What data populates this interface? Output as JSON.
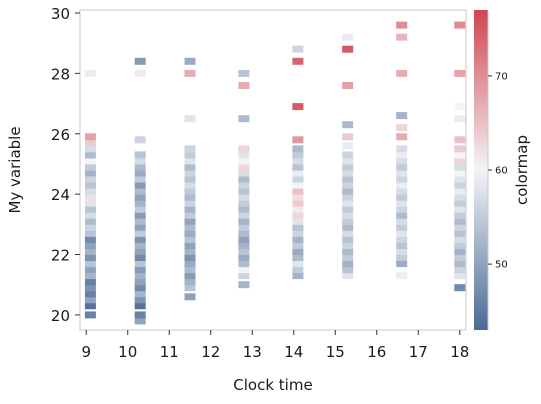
{
  "chart_data": {
    "type": "heatmap",
    "xlabel": "Clock time",
    "ylabel": "My variable",
    "colorbar_label": "colormap",
    "xlim": [
      8.85,
      18.15
    ],
    "ylim": [
      19.5,
      30.1
    ],
    "xticks": [
      9,
      10,
      11,
      12,
      13,
      14,
      15,
      16,
      17,
      18
    ],
    "yticks": [
      20,
      22,
      24,
      26,
      28,
      30
    ],
    "colorbar_range": [
      43,
      77
    ],
    "colorbar_ticks": [
      50,
      60,
      70
    ],
    "grid": false,
    "colors": {
      "low": "#4a6a94",
      "mid": "#f4f4f7",
      "high": "#d0454f"
    },
    "columns": [
      {
        "x": 9.1,
        "values": [
          [
            20.0,
            46
          ],
          [
            20.3,
            44
          ],
          [
            20.5,
            50
          ],
          [
            20.7,
            46
          ],
          [
            20.9,
            48
          ],
          [
            21.1,
            46
          ],
          [
            21.3,
            52
          ],
          [
            21.5,
            50
          ],
          [
            21.7,
            54
          ],
          [
            21.9,
            48
          ],
          [
            22.1,
            52
          ],
          [
            22.3,
            50
          ],
          [
            22.5,
            47
          ],
          [
            22.7,
            54
          ],
          [
            22.9,
            56
          ],
          [
            23.1,
            53
          ],
          [
            23.3,
            57
          ],
          [
            23.5,
            54
          ],
          [
            23.7,
            58
          ],
          [
            23.9,
            62
          ],
          [
            24.1,
            57
          ],
          [
            24.3,
            54
          ],
          [
            24.5,
            56
          ],
          [
            24.7,
            52
          ],
          [
            24.9,
            55
          ],
          [
            25.1,
            60
          ],
          [
            25.3,
            53
          ],
          [
            25.5,
            57
          ],
          [
            25.7,
            64
          ],
          [
            25.9,
            68
          ],
          [
            28.0,
            59
          ]
        ]
      },
      {
        "x": 10.3,
        "values": [
          [
            19.8,
            50
          ],
          [
            20.0,
            46
          ],
          [
            20.3,
            44
          ],
          [
            20.5,
            48
          ],
          [
            20.7,
            52
          ],
          [
            20.9,
            47
          ],
          [
            21.1,
            50
          ],
          [
            21.3,
            52
          ],
          [
            21.5,
            49
          ],
          [
            21.7,
            54
          ],
          [
            21.9,
            47
          ],
          [
            22.1,
            50
          ],
          [
            22.3,
            52
          ],
          [
            22.5,
            48
          ],
          [
            22.7,
            55
          ],
          [
            22.9,
            50
          ],
          [
            23.1,
            53
          ],
          [
            23.3,
            49
          ],
          [
            23.5,
            55
          ],
          [
            23.7,
            52
          ],
          [
            23.9,
            50
          ],
          [
            24.1,
            53
          ],
          [
            24.3,
            49
          ],
          [
            24.5,
            55
          ],
          [
            24.7,
            51
          ],
          [
            24.9,
            53
          ],
          [
            25.1,
            57
          ],
          [
            25.3,
            54
          ],
          [
            25.8,
            56
          ],
          [
            28.0,
            61
          ],
          [
            28.4,
            49
          ]
        ]
      },
      {
        "x": 11.5,
        "values": [
          [
            20.6,
            50
          ],
          [
            20.9,
            54
          ],
          [
            21.1,
            52
          ],
          [
            21.3,
            49
          ],
          [
            21.5,
            53
          ],
          [
            21.7,
            51
          ],
          [
            21.9,
            48
          ],
          [
            22.1,
            52
          ],
          [
            22.3,
            50
          ],
          [
            22.5,
            54
          ],
          [
            22.7,
            51
          ],
          [
            22.9,
            53
          ],
          [
            23.1,
            50
          ],
          [
            23.3,
            55
          ],
          [
            23.5,
            52
          ],
          [
            23.7,
            56
          ],
          [
            23.9,
            53
          ],
          [
            24.1,
            55
          ],
          [
            24.3,
            57
          ],
          [
            24.5,
            54
          ],
          [
            24.7,
            56
          ],
          [
            24.9,
            53
          ],
          [
            25.1,
            58
          ],
          [
            25.3,
            55
          ],
          [
            25.5,
            56
          ],
          [
            26.5,
            58
          ],
          [
            28.0,
            67
          ],
          [
            28.4,
            51
          ]
        ]
      },
      {
        "x": 12.8,
        "values": [
          [
            21.0,
            52
          ],
          [
            21.3,
            56
          ],
          [
            21.5,
            60
          ],
          [
            21.7,
            53
          ],
          [
            21.9,
            51
          ],
          [
            22.1,
            54
          ],
          [
            22.3,
            52
          ],
          [
            22.5,
            50
          ],
          [
            22.7,
            53
          ],
          [
            22.9,
            55
          ],
          [
            23.1,
            52
          ],
          [
            23.3,
            56
          ],
          [
            23.5,
            53
          ],
          [
            23.7,
            55
          ],
          [
            23.9,
            57
          ],
          [
            24.1,
            54
          ],
          [
            24.3,
            56
          ],
          [
            24.5,
            53
          ],
          [
            24.7,
            57
          ],
          [
            24.9,
            63
          ],
          [
            25.1,
            60
          ],
          [
            25.3,
            58
          ],
          [
            25.5,
            63
          ],
          [
            26.5,
            53
          ],
          [
            27.6,
            67
          ],
          [
            28.0,
            54
          ]
        ]
      },
      {
        "x": 14.1,
        "values": [
          [
            21.3,
            52
          ],
          [
            21.5,
            55
          ],
          [
            21.7,
            58
          ],
          [
            21.9,
            53
          ],
          [
            22.1,
            51
          ],
          [
            22.3,
            55
          ],
          [
            22.5,
            52
          ],
          [
            22.7,
            56
          ],
          [
            22.9,
            54
          ],
          [
            23.1,
            58
          ],
          [
            23.3,
            63
          ],
          [
            23.5,
            61
          ],
          [
            23.7,
            64
          ],
          [
            23.9,
            62
          ],
          [
            24.1,
            65
          ],
          [
            24.3,
            60
          ],
          [
            24.5,
            56
          ],
          [
            24.7,
            59
          ],
          [
            24.9,
            54
          ],
          [
            25.1,
            57
          ],
          [
            25.3,
            55
          ],
          [
            25.5,
            53
          ],
          [
            25.8,
            69
          ],
          [
            26.9,
            75
          ],
          [
            28.4,
            74
          ],
          [
            28.8,
            56
          ]
        ]
      },
      {
        "x": 15.3,
        "values": [
          [
            21.3,
            58
          ],
          [
            21.5,
            54
          ],
          [
            21.7,
            52
          ],
          [
            21.9,
            55
          ],
          [
            22.1,
            53
          ],
          [
            22.3,
            56
          ],
          [
            22.5,
            54
          ],
          [
            22.7,
            57
          ],
          [
            22.9,
            53
          ],
          [
            23.1,
            55
          ],
          [
            23.3,
            57
          ],
          [
            23.5,
            55
          ],
          [
            23.7,
            58
          ],
          [
            23.9,
            56
          ],
          [
            24.1,
            53
          ],
          [
            24.3,
            56
          ],
          [
            24.5,
            54
          ],
          [
            24.7,
            57
          ],
          [
            24.9,
            55
          ],
          [
            25.1,
            58
          ],
          [
            25.3,
            56
          ],
          [
            25.6,
            59
          ],
          [
            25.9,
            64
          ],
          [
            26.3,
            53
          ],
          [
            27.6,
            68
          ],
          [
            28.8,
            75
          ],
          [
            29.2,
            59
          ]
        ]
      },
      {
        "x": 16.6,
        "values": [
          [
            21.3,
            61
          ],
          [
            21.7,
            51
          ],
          [
            21.9,
            55
          ],
          [
            22.1,
            57
          ],
          [
            22.3,
            54
          ],
          [
            22.5,
            56
          ],
          [
            22.7,
            58
          ],
          [
            22.9,
            55
          ],
          [
            23.1,
            57
          ],
          [
            23.3,
            53
          ],
          [
            23.5,
            56
          ],
          [
            23.7,
            58
          ],
          [
            23.9,
            55
          ],
          [
            24.1,
            57
          ],
          [
            24.3,
            59
          ],
          [
            24.5,
            56
          ],
          [
            24.7,
            58
          ],
          [
            24.9,
            55
          ],
          [
            25.1,
            57
          ],
          [
            25.3,
            59
          ],
          [
            25.5,
            57
          ],
          [
            25.9,
            67
          ],
          [
            26.2,
            63
          ],
          [
            26.6,
            52
          ],
          [
            28.0,
            67
          ],
          [
            29.2,
            66
          ],
          [
            29.6,
            70
          ]
        ]
      },
      {
        "x": 18.0,
        "values": [
          [
            20.9,
            47
          ],
          [
            21.3,
            58
          ],
          [
            21.5,
            56
          ],
          [
            21.7,
            53
          ],
          [
            21.9,
            55
          ],
          [
            22.1,
            52
          ],
          [
            22.3,
            55
          ],
          [
            22.5,
            57
          ],
          [
            22.7,
            54
          ],
          [
            22.9,
            56
          ],
          [
            23.1,
            53
          ],
          [
            23.3,
            55
          ],
          [
            23.5,
            58
          ],
          [
            23.7,
            55
          ],
          [
            23.9,
            57
          ],
          [
            24.1,
            59
          ],
          [
            24.3,
            56
          ],
          [
            24.5,
            58
          ],
          [
            24.7,
            60
          ],
          [
            24.9,
            57
          ],
          [
            25.1,
            63
          ],
          [
            25.3,
            60
          ],
          [
            25.5,
            64
          ],
          [
            25.8,
            65
          ],
          [
            26.5,
            59
          ],
          [
            26.9,
            60
          ],
          [
            28.0,
            68
          ],
          [
            29.6,
            70
          ]
        ]
      }
    ]
  }
}
